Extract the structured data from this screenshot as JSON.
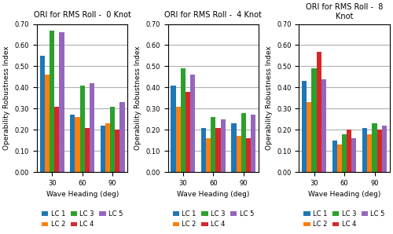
{
  "chart_data": [
    {
      "type": "bar",
      "title": "ORI for RMS Roll -  0 Knot",
      "x_label": "Wave Heading (deg)",
      "y_label": "Operability Robustness Index",
      "categories": [
        "30",
        "60",
        "90"
      ],
      "series": [
        {
          "name": "LC 1",
          "values": [
            0.55,
            0.27,
            0.22
          ]
        },
        {
          "name": "LC 2",
          "values": [
            0.46,
            0.26,
            0.23
          ]
        },
        {
          "name": "LC 3",
          "values": [
            0.67,
            0.41,
            0.31
          ]
        },
        {
          "name": "LC 4",
          "values": [
            0.31,
            0.21,
            0.2
          ]
        },
        {
          "name": "LC 5",
          "values": [
            0.66,
            0.42,
            0.33
          ]
        }
      ],
      "ylim": [
        0.0,
        0.7
      ],
      "yticks": [
        {
          "value": 0.0,
          "label": "0.00"
        },
        {
          "value": 0.1,
          "label": "0.10"
        },
        {
          "value": 0.2,
          "label": "0.20"
        },
        {
          "value": 0.3,
          "label": "0.30"
        },
        {
          "value": 0.4,
          "label": "0.40"
        },
        {
          "value": 0.5,
          "label": "0.50"
        },
        {
          "value": 0.6,
          "label": "0.60"
        },
        {
          "value": 0.7,
          "label": "0.70"
        }
      ],
      "grid": true,
      "legend": "upper center"
    },
    {
      "type": "bar",
      "title": "ORI for RMS Roll -  4 Knot",
      "x_label": "Wave Heading (deg)",
      "y_label": "Operability Robustness Index",
      "categories": [
        "30",
        "60",
        "90"
      ],
      "series": [
        {
          "name": "LC 1",
          "values": [
            0.41,
            0.21,
            0.23
          ]
        },
        {
          "name": "LC 2",
          "values": [
            0.31,
            0.16,
            0.17
          ]
        },
        {
          "name": "LC 3",
          "values": [
            0.49,
            0.26,
            0.28
          ]
        },
        {
          "name": "LC 4",
          "values": [
            0.38,
            0.21,
            0.16
          ]
        },
        {
          "name": "LC 5",
          "values": [
            0.46,
            0.25,
            0.27
          ]
        }
      ],
      "ylim": [
        0.0,
        0.7
      ],
      "yticks": [
        {
          "value": 0.0,
          "label": "0.00"
        },
        {
          "value": 0.1,
          "label": "0.10"
        },
        {
          "value": 0.2,
          "label": "0.20"
        },
        {
          "value": 0.3,
          "label": "0.30"
        },
        {
          "value": 0.4,
          "label": "0.40"
        },
        {
          "value": 0.5,
          "label": "0.50"
        },
        {
          "value": 0.6,
          "label": "0.60"
        },
        {
          "value": 0.7,
          "label": "0.70"
        }
      ],
      "grid": true,
      "legend": "upper center"
    },
    {
      "type": "bar",
      "title": "ORI for RMS Roll -  8 Knot",
      "x_label": "Wave Heading (deg)",
      "y_label": "Operability Robustness Index",
      "categories": [
        "30",
        "60",
        "90"
      ],
      "series": [
        {
          "name": "LC 1",
          "values": [
            0.43,
            0.15,
            0.21
          ]
        },
        {
          "name": "LC 2",
          "values": [
            0.33,
            0.13,
            0.18
          ]
        },
        {
          "name": "LC 3",
          "values": [
            0.49,
            0.18,
            0.23
          ]
        },
        {
          "name": "LC 4",
          "values": [
            0.57,
            0.2,
            0.2
          ]
        },
        {
          "name": "LC 5",
          "values": [
            0.44,
            0.16,
            0.22
          ]
        }
      ],
      "ylim": [
        0.0,
        0.7
      ],
      "yticks": [
        {
          "value": 0.0,
          "label": "0.00"
        },
        {
          "value": 0.1,
          "label": "0.10"
        },
        {
          "value": 0.2,
          "label": "0.20"
        },
        {
          "value": 0.3,
          "label": "0.30"
        },
        {
          "value": 0.4,
          "label": "0.40"
        },
        {
          "value": 0.5,
          "label": "0.50"
        },
        {
          "value": 0.6,
          "label": "0.60"
        },
        {
          "value": 0.7,
          "label": "0.70"
        }
      ],
      "grid": true,
      "legend": "upper center"
    }
  ]
}
